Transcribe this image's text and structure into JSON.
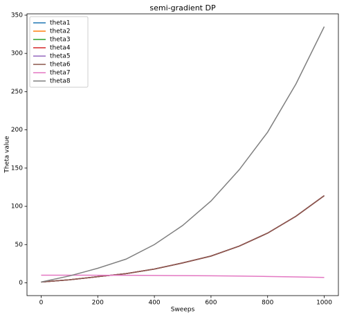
{
  "chart_data": {
    "type": "line",
    "title": "semi-gradient DP",
    "x_label": "Sweeps",
    "y_label": "Theta value",
    "x": [
      0,
      100,
      200,
      300,
      400,
      500,
      600,
      700,
      800,
      900,
      1000
    ],
    "series": [
      {
        "name": "theta1",
        "color": "#1f77b4",
        "values": [
          1,
          4,
          8,
          12,
          18,
          26,
          35,
          48,
          65,
          87,
          114
        ]
      },
      {
        "name": "theta2",
        "color": "#ff7f0e",
        "values": [
          1,
          4,
          8,
          12,
          18,
          26,
          35,
          48,
          65,
          87,
          114
        ]
      },
      {
        "name": "theta3",
        "color": "#2ca02c",
        "values": [
          1,
          4,
          8,
          12,
          18,
          26,
          35,
          48,
          65,
          87,
          114
        ]
      },
      {
        "name": "theta4",
        "color": "#d62728",
        "values": [
          1,
          4,
          8,
          12,
          18,
          26,
          35,
          48,
          65,
          87,
          114
        ]
      },
      {
        "name": "theta5",
        "color": "#9467bd",
        "values": [
          1,
          4,
          8,
          12,
          18,
          26,
          35,
          48,
          65,
          87,
          114
        ]
      },
      {
        "name": "theta6",
        "color": "#8c564b",
        "values": [
          1,
          4,
          8,
          12,
          18,
          26,
          35,
          48,
          65,
          87,
          114
        ]
      },
      {
        "name": "theta7",
        "color": "#e377c2",
        "values": [
          10,
          10,
          9.9,
          9.8,
          9.6,
          9.4,
          9.2,
          8.8,
          8.3,
          7.7,
          7
        ]
      },
      {
        "name": "theta8",
        "color": "#7f7f7f",
        "values": [
          1,
          9,
          19,
          31,
          50,
          75,
          107,
          148,
          197,
          260,
          335
        ]
      }
    ],
    "xlim": [
      -50,
      1050
    ],
    "ylim": [
      -16.75,
      351.75
    ],
    "xticks": [
      0,
      200,
      400,
      600,
      800,
      1000
    ],
    "yticks": [
      0,
      50,
      100,
      150,
      200,
      250,
      300,
      350
    ],
    "legend": "upper left"
  }
}
